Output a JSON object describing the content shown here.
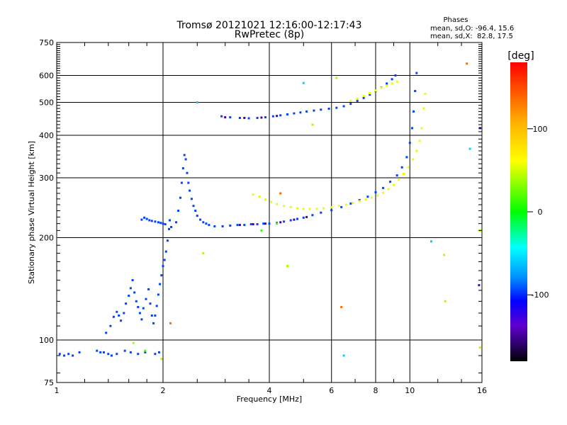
{
  "chart_data": {
    "type": "scatter",
    "title": "Tromsø 20121021 12:16:00-12:17:43",
    "subtitle": "RwPretec (8p)",
    "xlabel": "Frequency [MHz]",
    "ylabel": "Stationary phase Virtual Height [km]",
    "x_scale": "log",
    "y_scale": "log",
    "xlim": [
      1,
      16
    ],
    "ylim": [
      75,
      750
    ],
    "grid": true,
    "xticks": [
      1,
      2,
      4,
      6,
      8,
      10,
      16
    ],
    "yticks": [
      75,
      100,
      200,
      300,
      400,
      500,
      600,
      750
    ],
    "phases_box": {
      "heading": "Phases",
      "line_o": "mean, sd,O: -96.4, 15.6",
      "line_x": "mean, sd,X:  82.8, 17.5"
    },
    "colorbar": {
      "label": "[deg]",
      "range": [
        -180,
        180
      ],
      "ticks": [
        100,
        0,
        -100
      ],
      "scale": "rainbow"
    },
    "colors": {
      "o_mode": "#1b2bff",
      "o_mode_dark": "#2a12b0",
      "x_mode": "#e6f23a"
    },
    "series": [
      {
        "phase_deg": -96,
        "points": [
          [
            1.02,
            91
          ],
          [
            1.05,
            90
          ],
          [
            1.08,
            91
          ],
          [
            1.11,
            90
          ],
          [
            1.16,
            92
          ],
          [
            1.3,
            93
          ],
          [
            1.33,
            92
          ],
          [
            1.36,
            92
          ],
          [
            1.4,
            91
          ],
          [
            1.43,
            90
          ],
          [
            1.48,
            91
          ],
          [
            1.56,
            93
          ],
          [
            1.62,
            92
          ],
          [
            1.7,
            91
          ],
          [
            1.78,
            92
          ],
          [
            1.9,
            91
          ],
          [
            1.95,
            92
          ],
          [
            1.38,
            105
          ],
          [
            1.42,
            110
          ],
          [
            1.45,
            117
          ],
          [
            1.48,
            121
          ],
          [
            1.5,
            118
          ],
          [
            1.52,
            114
          ],
          [
            1.55,
            120
          ],
          [
            1.57,
            128
          ],
          [
            1.6,
            135
          ],
          [
            1.62,
            142
          ],
          [
            1.64,
            150
          ],
          [
            1.66,
            138
          ],
          [
            1.68,
            130
          ],
          [
            1.7,
            125
          ],
          [
            1.72,
            120
          ],
          [
            1.74,
            115
          ],
          [
            1.76,
            124
          ],
          [
            1.79,
            132
          ],
          [
            1.82,
            141
          ],
          [
            1.84,
            128
          ],
          [
            1.86,
            118
          ],
          [
            1.88,
            112
          ],
          [
            1.9,
            118
          ],
          [
            1.92,
            126
          ],
          [
            1.94,
            136
          ],
          [
            1.96,
            146
          ],
          [
            1.98,
            155
          ],
          [
            2.0,
            165
          ],
          [
            2.02,
            172
          ],
          [
            2.04,
            182
          ],
          [
            2.06,
            196
          ],
          [
            2.08,
            212
          ],
          [
            2.09,
            225
          ],
          [
            2.11,
            215
          ],
          [
            1.74,
            226
          ],
          [
            1.77,
            229
          ],
          [
            1.8,
            227
          ],
          [
            1.83,
            225
          ],
          [
            1.86,
            224
          ],
          [
            1.9,
            223
          ],
          [
            1.94,
            222
          ],
          [
            1.97,
            221
          ],
          [
            2.0,
            220
          ],
          [
            2.03,
            219
          ],
          [
            2.18,
            222
          ],
          [
            2.21,
            240
          ],
          [
            2.24,
            262
          ],
          [
            2.26,
            290
          ],
          [
            2.28,
            320
          ],
          [
            2.3,
            350
          ],
          [
            2.32,
            340
          ],
          [
            2.34,
            310
          ],
          [
            2.36,
            290
          ],
          [
            2.38,
            275
          ],
          [
            2.41,
            260
          ],
          [
            2.44,
            248
          ],
          [
            2.47,
            240
          ],
          [
            2.5,
            232
          ],
          [
            2.55,
            226
          ],
          [
            2.6,
            222
          ],
          [
            2.65,
            220
          ],
          [
            2.7,
            218
          ],
          [
            2.8,
            216
          ],
          [
            2.95,
            216
          ],
          [
            3.1,
            217
          ],
          [
            3.25,
            218
          ],
          [
            3.4,
            218
          ],
          [
            3.55,
            219
          ],
          [
            3.7,
            219
          ],
          [
            3.85,
            220
          ],
          [
            4.0,
            220
          ],
          [
            4.2,
            221
          ],
          [
            4.4,
            223
          ],
          [
            4.6,
            225
          ],
          [
            4.8,
            227
          ],
          [
            5.0,
            229
          ],
          [
            5.3,
            233
          ],
          [
            5.6,
            237
          ],
          [
            6.0,
            241
          ],
          [
            6.4,
            246
          ],
          [
            6.8,
            252
          ],
          [
            7.2,
            258
          ],
          [
            7.6,
            264
          ],
          [
            8.0,
            272
          ],
          [
            8.4,
            280
          ],
          [
            8.8,
            292
          ],
          [
            9.2,
            305
          ],
          [
            9.5,
            322
          ],
          [
            9.8,
            345
          ],
          [
            10.0,
            380
          ],
          [
            10.15,
            420
          ],
          [
            10.25,
            470
          ],
          [
            10.35,
            540
          ],
          [
            10.45,
            610
          ],
          [
            2.93,
            455
          ],
          [
            3.1,
            452
          ],
          [
            3.3,
            450
          ],
          [
            3.5,
            449
          ],
          [
            3.7,
            450
          ],
          [
            3.9,
            452
          ],
          [
            4.1,
            455
          ],
          [
            4.3,
            458
          ],
          [
            4.5,
            461
          ],
          [
            4.7,
            464
          ],
          [
            4.9,
            467
          ],
          [
            5.1,
            470
          ],
          [
            5.35,
            473
          ],
          [
            5.6,
            476
          ],
          [
            5.9,
            479
          ],
          [
            6.2,
            482
          ],
          [
            6.5,
            487
          ],
          [
            6.8,
            495
          ],
          [
            7.1,
            505
          ],
          [
            7.4,
            515
          ],
          [
            7.7,
            527
          ],
          [
            8.0,
            540
          ],
          [
            8.3,
            553
          ],
          [
            8.6,
            568
          ],
          [
            8.9,
            585
          ],
          [
            9.1,
            600
          ]
        ]
      },
      {
        "phase_deg": 83,
        "points": [
          [
            3.6,
            268
          ],
          [
            3.75,
            264
          ],
          [
            3.9,
            259
          ],
          [
            4.05,
            255
          ],
          [
            4.2,
            251
          ],
          [
            4.4,
            248
          ],
          [
            4.6,
            246
          ],
          [
            4.8,
            244
          ],
          [
            5.0,
            243
          ],
          [
            5.2,
            243
          ],
          [
            5.45,
            243
          ],
          [
            5.7,
            244
          ],
          [
            6.0,
            246
          ],
          [
            6.3,
            248
          ],
          [
            6.6,
            250
          ],
          [
            6.9,
            253
          ],
          [
            7.2,
            256
          ],
          [
            7.5,
            259
          ],
          [
            7.8,
            262
          ],
          [
            8.1,
            266
          ],
          [
            8.4,
            271
          ],
          [
            8.7,
            278
          ],
          [
            9.0,
            286
          ],
          [
            9.3,
            296
          ],
          [
            9.6,
            308
          ],
          [
            9.9,
            322
          ],
          [
            10.2,
            340
          ],
          [
            10.45,
            360
          ],
          [
            10.65,
            385
          ],
          [
            10.8,
            420
          ],
          [
            10.95,
            480
          ],
          [
            11.05,
            530
          ],
          [
            6.8,
            505
          ],
          [
            7.1,
            513
          ],
          [
            7.4,
            522
          ],
          [
            7.7,
            532
          ],
          [
            8.0,
            542
          ],
          [
            8.3,
            552
          ],
          [
            8.6,
            560
          ],
          [
            8.9,
            568
          ],
          [
            9.2,
            575
          ]
        ]
      },
      {
        "phase_deg": -150,
        "points": [
          [
            3.3,
            218
          ],
          [
            3.6,
            219
          ],
          [
            3.9,
            220
          ],
          [
            4.3,
            222
          ],
          [
            4.7,
            226
          ],
          [
            5.1,
            230
          ],
          [
            3.0,
            452
          ],
          [
            3.4,
            450
          ],
          [
            3.8,
            451
          ],
          [
            4.2,
            456
          ]
        ]
      },
      {
        "phase_deg": 20,
        "points": [
          [
            1.78,
            93
          ],
          [
            3.8,
            210
          ],
          [
            4.2,
            220
          ]
        ]
      },
      {
        "phase_deg": 150,
        "points": [
          [
            2.1,
            112
          ],
          [
            6.4,
            125
          ],
          [
            14.5,
            650
          ],
          [
            4.3,
            270
          ]
        ]
      },
      {
        "phase_deg": 60,
        "points": [
          [
            1.98,
            88
          ],
          [
            2.6,
            180
          ],
          [
            4.5,
            165
          ],
          [
            6.2,
            590
          ],
          [
            12.5,
            178
          ],
          [
            12.6,
            130
          ],
          [
            15.8,
            210
          ],
          [
            15.8,
            95
          ],
          [
            5.3,
            430
          ],
          [
            1.65,
            98
          ]
        ]
      },
      {
        "phase_deg": -60,
        "points": [
          [
            5.0,
            570
          ],
          [
            6.5,
            90
          ],
          [
            2.5,
            500
          ],
          [
            11.5,
            195
          ],
          [
            14.8,
            365
          ]
        ]
      },
      {
        "phase_deg": -130,
        "points": [
          [
            15.8,
            420
          ],
          [
            15.7,
            145
          ]
        ]
      }
    ]
  }
}
